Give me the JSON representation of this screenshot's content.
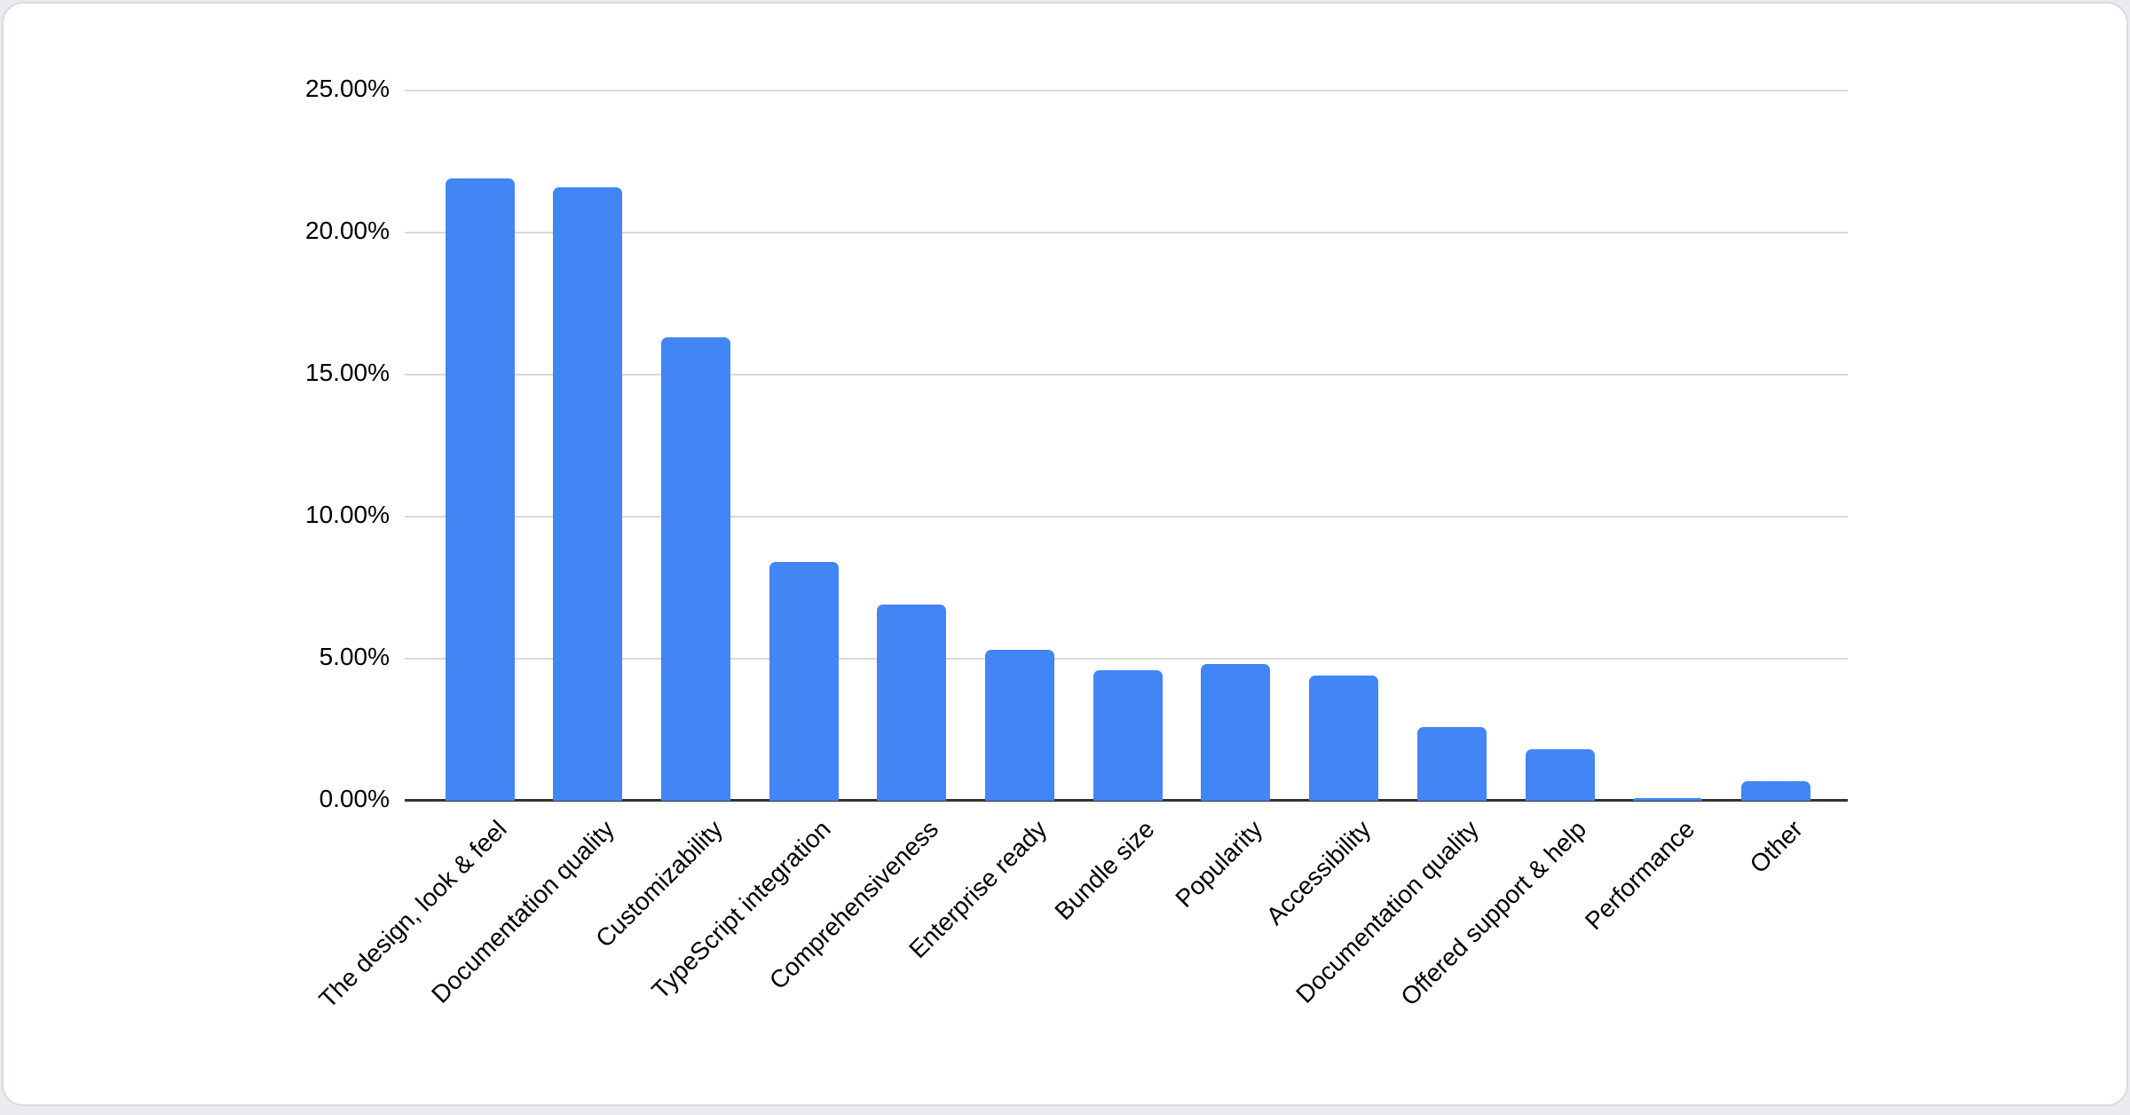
{
  "page": {
    "background": "#e9ebf0",
    "card_background": "#ffffff",
    "card_border_color": "#d9dbde"
  },
  "chart_data": {
    "type": "bar",
    "title": "",
    "xlabel": "",
    "ylabel": "",
    "categories": [
      "The design, look & feel",
      "Documentation quality",
      "Customizability",
      "TypeScript integration",
      "Comprehensiveness",
      "Enterprise ready",
      "Bundle size",
      "Popularity",
      "Accessibility",
      "Documentation quality",
      "Offered support & help",
      "Performance",
      "Other"
    ],
    "values": [
      21.9,
      21.6,
      16.3,
      8.4,
      6.9,
      5.3,
      4.6,
      4.8,
      4.4,
      2.6,
      1.8,
      0.1,
      0.7
    ],
    "unit": "percent",
    "ylim": [
      0,
      25
    ],
    "y_tick_step": 5,
    "y_ticks": [
      "0.00%",
      "5.00%",
      "10.00%",
      "15.00%",
      "20.00%",
      "25.00%"
    ],
    "x_label_rotation_deg": 45,
    "grid": "horizontal",
    "legend": "none",
    "bar_color": "#4285f4",
    "gridline_color": "#d9d9d9",
    "axis_line_color": "#333333",
    "text_color": "#000000"
  }
}
